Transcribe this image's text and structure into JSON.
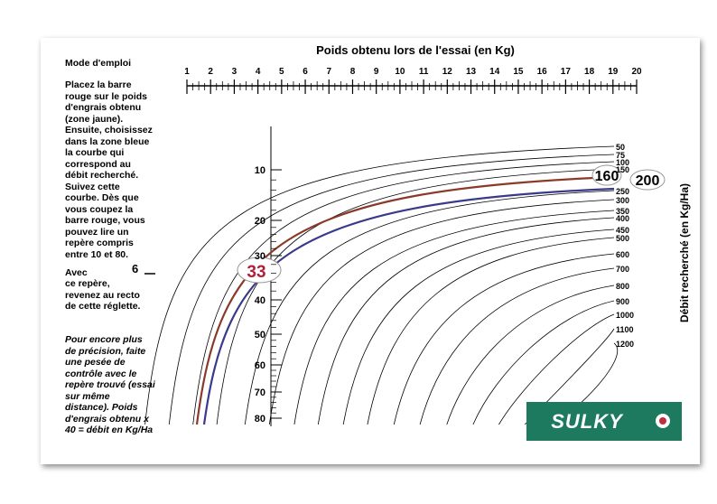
{
  "instructions": {
    "title": "Mode d'emploi",
    "paragraph_1": "Placez la barre rouge sur le poids d'engrais obtenu (zone jaune). Ensuite, choisissez dans la zone bleue la courbe qui correspond au débit recherché. Suivez cette courbe. Dès que vous coupez la barre rouge, vous pouvez lire un repère compris entre 10 et 80.",
    "avec": "Avec",
    "marker": "6",
    "paragraph_1_end": "ce repère, revenez au recto de cette réglette.",
    "paragraph_2": "Pour encore plus de précision, faite une pesée de contrôle avec le repère trouvé (essai sur même distance). Poids d'engrais obtenu x 40 = débit en Kg/Ha"
  },
  "top_scale": {
    "title": "Poids obtenu lors de l'essai (en Kg)",
    "ticks": [
      "1",
      "2",
      "3",
      "4",
      "5",
      "6",
      "7",
      "8",
      "9",
      "10",
      "11",
      "12",
      "13",
      "14",
      "15",
      "16",
      "17",
      "18",
      "19",
      "20"
    ]
  },
  "left_scale": {
    "ticks": [
      "10",
      "20",
      "30",
      "40",
      "50",
      "60",
      "70",
      "80"
    ],
    "highlight": "33"
  },
  "curves": {
    "labels": [
      "50",
      "75",
      "100",
      "150",
      "250",
      "300",
      "350",
      "400",
      "450",
      "500",
      "600",
      "700",
      "800",
      "900",
      "1000",
      "1100",
      "1200"
    ],
    "highlight_1": "160",
    "highlight_2": "200"
  },
  "right_axis_title": "Débit recherché (en Kg/Ha)",
  "logo": "SULKY"
}
